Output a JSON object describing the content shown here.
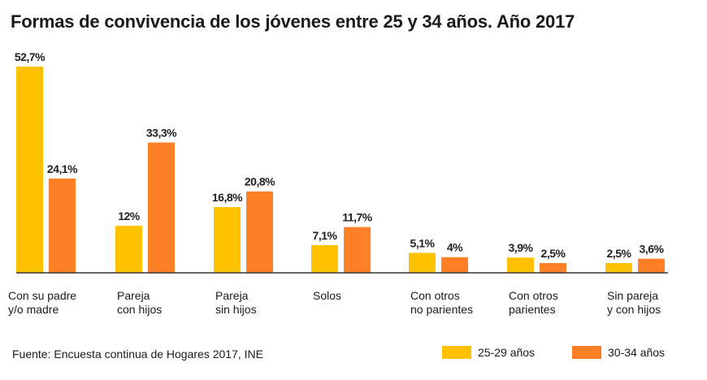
{
  "chart_data": {
    "type": "bar",
    "title": "Formas de convivencia de los jóvenes entre 25 y 34 años. Año 2017",
    "xlabel": "",
    "ylabel": "",
    "ylim": [
      0,
      55
    ],
    "grid": false,
    "legend_position": "bottom-right",
    "categories": [
      [
        "Con su padre",
        "y/o madre"
      ],
      [
        "Pareja",
        "con hijos"
      ],
      [
        "Pareja",
        "sin hijos"
      ],
      [
        "Solos"
      ],
      [
        "Con otros",
        "no parientes"
      ],
      [
        "Con otros",
        "parientes"
      ],
      [
        "Sin pareja",
        "y con hijos"
      ]
    ],
    "series": [
      {
        "name": "25-29 años",
        "color": "#FFC000",
        "values": [
          52.7,
          12,
          16.8,
          7.1,
          5.1,
          3.9,
          2.5
        ],
        "labels": [
          "52,7%",
          "12%",
          "16,8%",
          "7,1%",
          "5,1%",
          "3,9%",
          "2,5%"
        ]
      },
      {
        "name": "30-34 años",
        "color": "#FF7F27",
        "values": [
          24.1,
          33.3,
          20.8,
          11.7,
          4,
          2.5,
          3.6
        ],
        "labels": [
          "24,1%",
          "33,3%",
          "20,8%",
          "11,7%",
          "4%",
          "2,5%",
          "3,6%"
        ]
      }
    ],
    "source": "Fuente: Encuesta continua de Hogares 2017, INE"
  }
}
